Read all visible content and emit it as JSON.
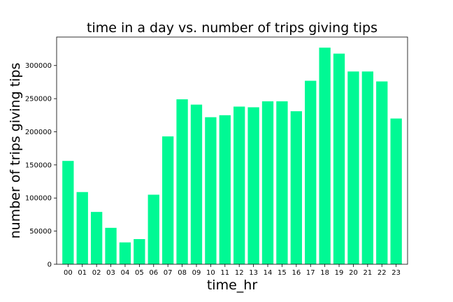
{
  "chart_data": {
    "type": "bar",
    "title": "time in a day vs. number of trips giving tips",
    "xlabel": "time_hr",
    "ylabel": "number of trips giving tips",
    "categories": [
      "00",
      "01",
      "02",
      "03",
      "04",
      "05",
      "06",
      "07",
      "08",
      "09",
      "10",
      "11",
      "12",
      "13",
      "14",
      "15",
      "16",
      "17",
      "18",
      "19",
      "20",
      "21",
      "22",
      "23"
    ],
    "values": [
      156000,
      109000,
      79000,
      55000,
      33000,
      38000,
      105000,
      193000,
      249000,
      241000,
      222000,
      225000,
      238000,
      237000,
      246000,
      246000,
      231000,
      277000,
      327000,
      318000,
      291000,
      291000,
      276000,
      220000
    ],
    "yticks": [
      0,
      50000,
      100000,
      150000,
      200000,
      250000,
      300000
    ],
    "ylim": [
      0,
      343000
    ],
    "bar_color": "#00f994",
    "grid": false
  }
}
